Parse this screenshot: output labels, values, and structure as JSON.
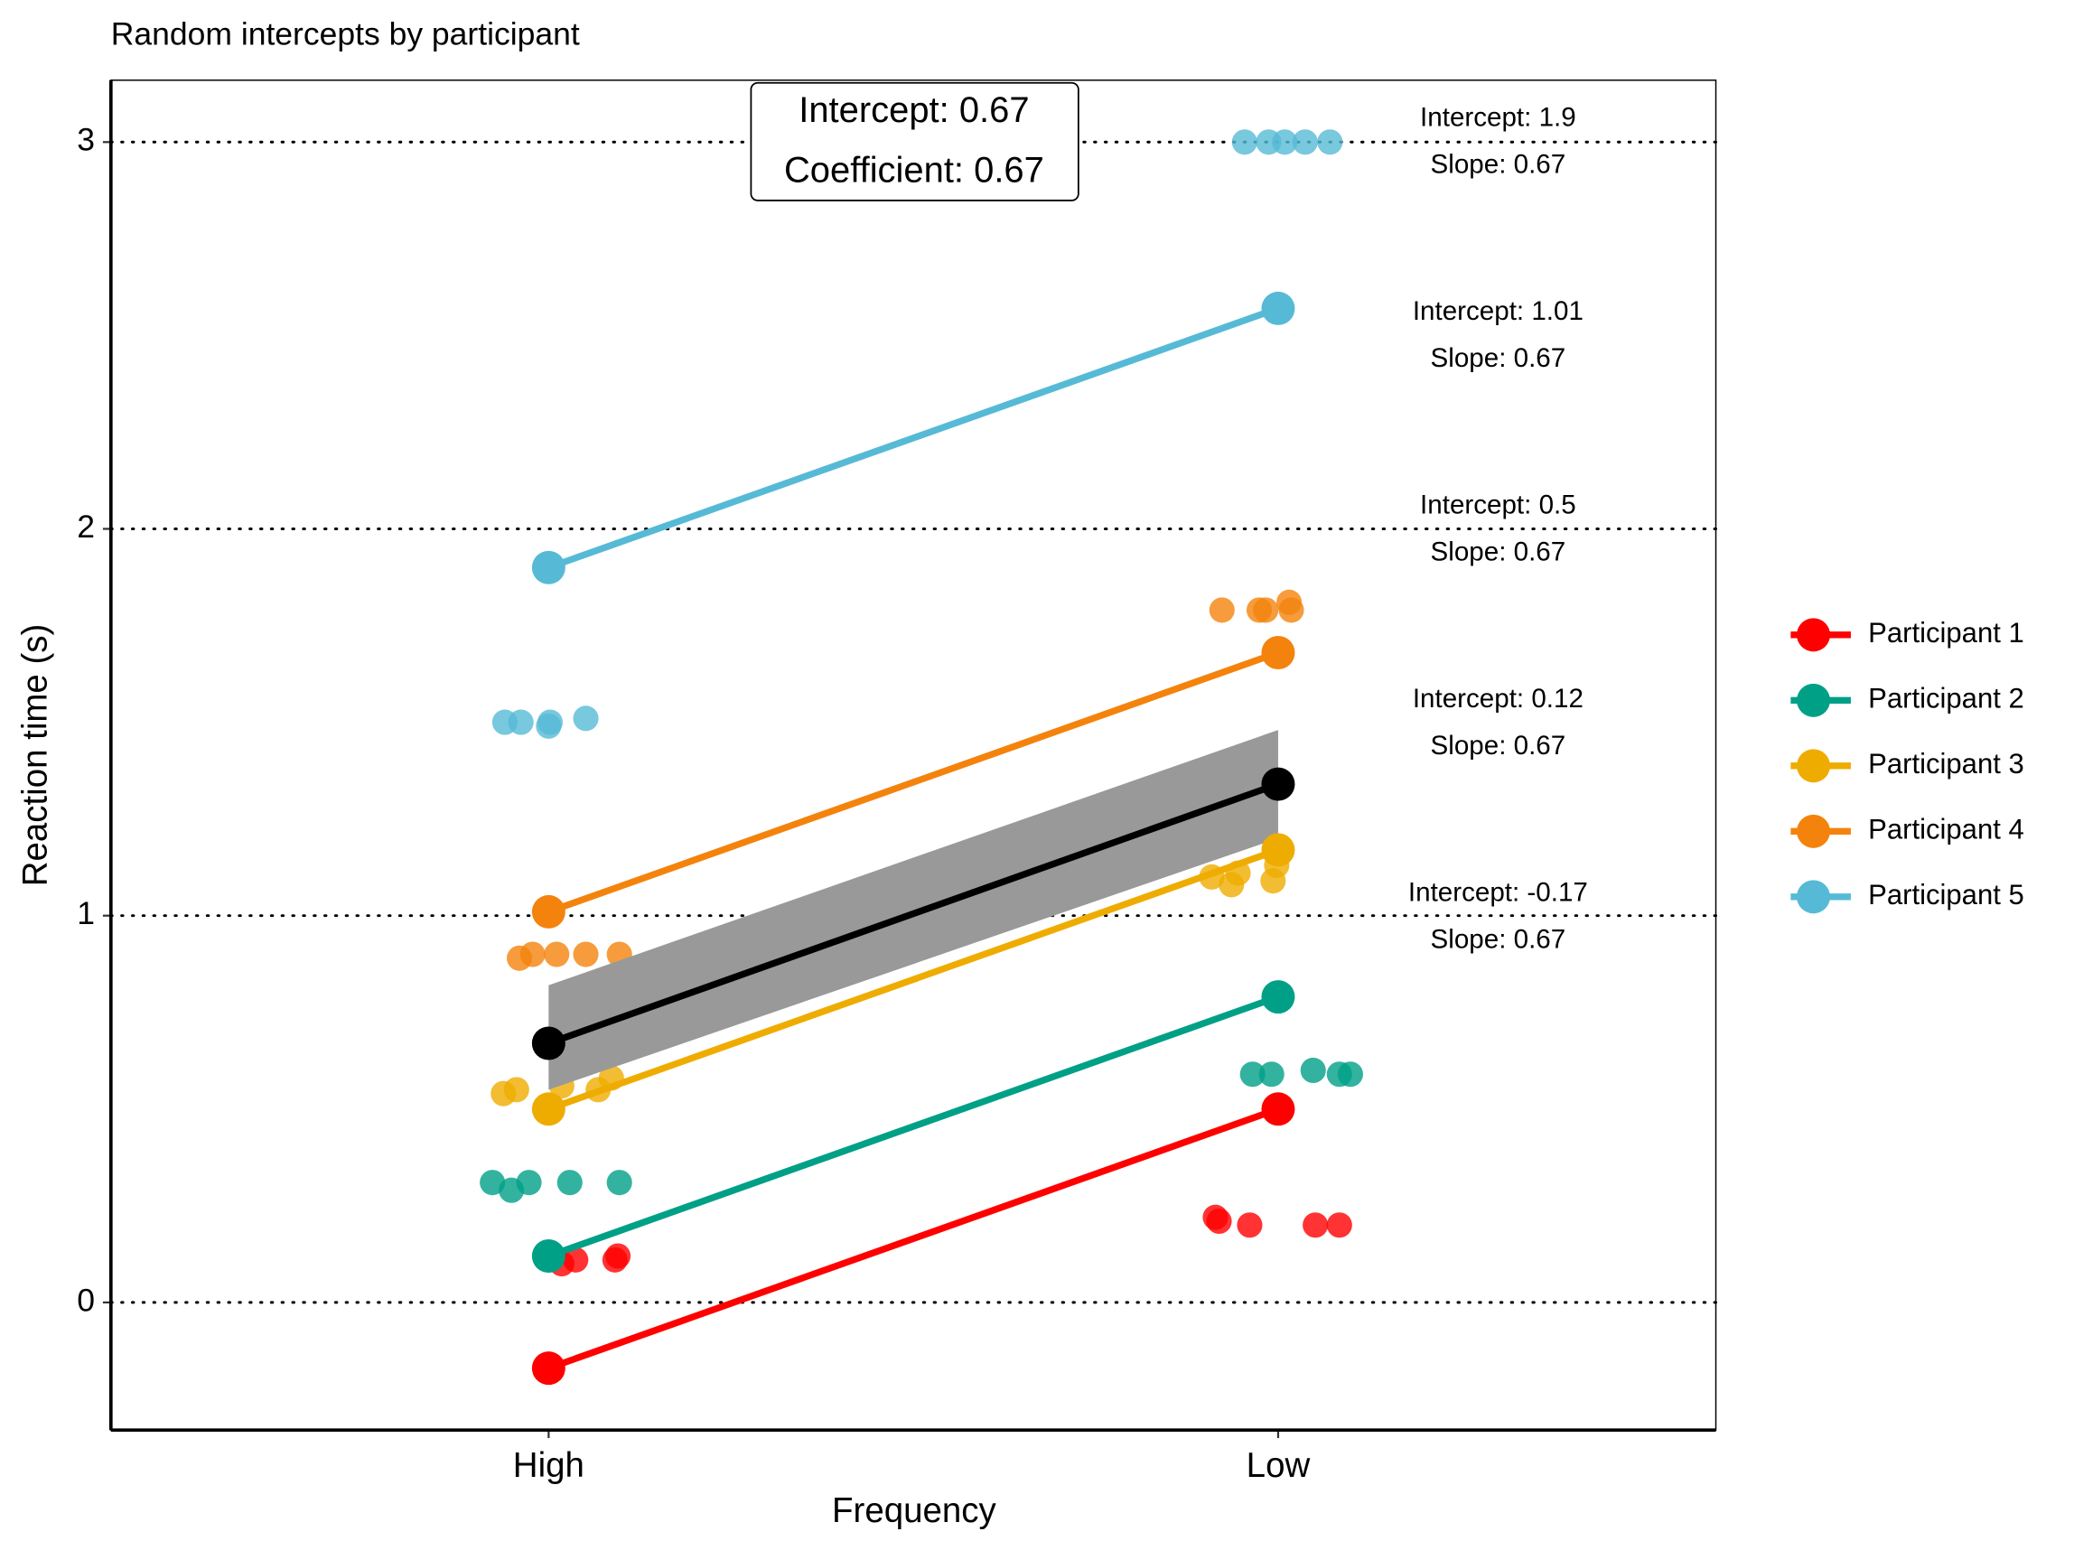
{
  "chart_data": {
    "type": "line",
    "title": "Random intercepts by participant",
    "x_label": "Frequency",
    "y_label": "Reaction time (s)",
    "xlim": [
      0.4,
      2.6
    ],
    "xticks": [
      {
        "value": 1,
        "label": "High"
      },
      {
        "value": 2,
        "label": "Low"
      }
    ],
    "ylim": [
      -0.33,
      3.16
    ],
    "yticks": [
      0,
      1,
      2,
      3
    ],
    "grid": "dotted",
    "legend": "right",
    "model_label": [
      "Intercept: 0.67",
      "Coefficient: 0.67"
    ],
    "mean": {
      "color": "#000000",
      "values": [
        0.67,
        1.34
      ],
      "ribbon_color": "#999999",
      "lower": [
        0.55,
        1.2
      ],
      "upper": [
        0.82,
        1.48
      ]
    },
    "series": [
      {
        "name": "Participant 1",
        "color": "#ff0000",
        "values": [
          -0.17,
          0.5
        ],
        "label": [
          "Intercept: -0.17",
          "Slope: 0.67"
        ],
        "points": {
          "x": [
            1.018,
            1.037,
            1.091,
            1.095,
            1.914,
            1.919,
            1.961,
            2.051,
            2.084
          ],
          "y": [
            0.1,
            0.11,
            0.11,
            0.12,
            0.22,
            0.21,
            0.2,
            0.2,
            0.2
          ]
        }
      },
      {
        "name": "Participant 2",
        "color": "#00a087",
        "values": [
          0.12,
          0.79
        ],
        "label": [
          "Intercept: 0.12",
          "Slope: 0.67"
        ],
        "points": {
          "x": [
            0.923,
            0.949,
            0.973,
            1.029,
            1.097,
            1.965,
            1.991,
            2.048,
            2.084,
            2.099
          ],
          "y": [
            0.31,
            0.29,
            0.31,
            0.31,
            0.31,
            0.59,
            0.59,
            0.6,
            0.59,
            0.59
          ]
        }
      },
      {
        "name": "Participant 3",
        "color": "#efac00",
        "values": [
          0.5,
          1.17
        ],
        "label": [
          "Intercept: 0.5",
          "Slope: 0.67"
        ],
        "points": {
          "x": [
            0.938,
            0.956,
            1.018,
            1.068,
            1.086,
            1.909,
            1.936,
            1.945,
            1.993,
            1.998
          ],
          "y": [
            0.54,
            0.55,
            0.56,
            0.55,
            0.58,
            1.1,
            1.08,
            1.11,
            1.09,
            1.13
          ]
        }
      },
      {
        "name": "Participant 4",
        "color": "#f4830d",
        "values": [
          1.01,
          1.68
        ],
        "label": [
          "Intercept: 1.01",
          "Slope: 0.67"
        ],
        "points": {
          "x": [
            0.96,
            0.978,
            1.011,
            1.051,
            1.097,
            1.923,
            1.974,
            1.983,
            2.015,
            2.018
          ],
          "y": [
            0.89,
            0.9,
            0.9,
            0.9,
            0.9,
            1.79,
            1.79,
            1.79,
            1.81,
            1.79
          ]
        }
      },
      {
        "name": "Participant 5",
        "color": "#56bad6",
        "values": [
          1.9,
          2.57
        ],
        "label": [
          "Intercept: 1.9",
          "Slope: 0.67"
        ],
        "points": {
          "x": [
            0.94,
            0.962,
            1.0,
            1.002,
            1.051,
            1.954,
            1.987,
            2.009,
            2.037,
            2.071
          ],
          "y": [
            1.5,
            1.5,
            1.49,
            1.5,
            1.51,
            3.0,
            3.0,
            3.0,
            3.0,
            3.0
          ]
        }
      }
    ]
  }
}
